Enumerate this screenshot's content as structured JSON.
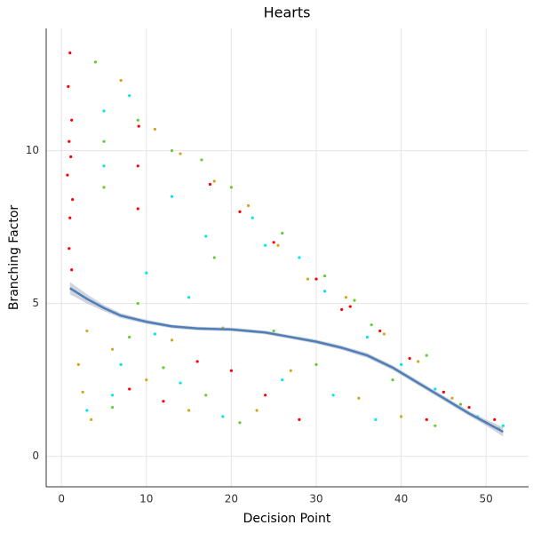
{
  "chart_data": {
    "type": "scatter",
    "title": "Hearts",
    "x_label": "Decision Point",
    "y_label": "Branching Factor",
    "xlim": [
      -1.8,
      55
    ],
    "ylim": [
      -1,
      14
    ],
    "xticks": [
      0,
      10,
      20,
      30,
      40,
      50
    ],
    "yticks": [
      0,
      5,
      10
    ],
    "grid": true,
    "series": [
      {
        "color": "#ff0000",
        "x": [
          1,
          0.8,
          1.2,
          0.9,
          1.1,
          0.7,
          1.3,
          1,
          0.9,
          1.2,
          9.1,
          9,
          9,
          17.5,
          21,
          25,
          30,
          34,
          37.5,
          41,
          45,
          48,
          51,
          12,
          20,
          28,
          16,
          8,
          24,
          33,
          43
        ],
        "y": [
          13.2,
          12.1,
          11.0,
          10.3,
          9.8,
          9.2,
          8.4,
          7.8,
          6.8,
          6.1,
          10.8,
          9.5,
          8.1,
          8.9,
          8,
          7,
          5.8,
          4.9,
          4.1,
          3.2,
          2.1,
          1.6,
          1.2,
          1.8,
          2.8,
          1.2,
          3.1,
          2.2,
          2.0,
          4.8,
          1.2
        ]
      },
      {
        "color": "#d4a520",
        "x": [
          3,
          2,
          2.5,
          3.5,
          7,
          11,
          14,
          18,
          22,
          25.5,
          29,
          33.5,
          38,
          42,
          46,
          50,
          6,
          10,
          15,
          19,
          27,
          35,
          40,
          13,
          23
        ],
        "y": [
          4.1,
          3.0,
          2.1,
          1.2,
          12.3,
          10.7,
          9.9,
          9,
          8.2,
          6.9,
          5.8,
          5.2,
          4.0,
          3.1,
          1.9,
          1.1,
          3.5,
          2.5,
          1.5,
          4.2,
          2.8,
          1.9,
          1.3,
          3.8,
          1.5
        ]
      },
      {
        "color": "#66cc33",
        "x": [
          4,
          5,
          5,
          9,
          13,
          16.5,
          20,
          26,
          31,
          34.5,
          36.5,
          43,
          47,
          51.5,
          8,
          12,
          17,
          21,
          30,
          39,
          44,
          6,
          25,
          18,
          9
        ],
        "y": [
          12.9,
          10.3,
          8.8,
          11,
          10,
          9.7,
          8.8,
          7.3,
          5.9,
          5.1,
          4.3,
          3.3,
          1.7,
          0.9,
          3.9,
          2.9,
          2.0,
          1.1,
          3.0,
          2.5,
          1.0,
          1.6,
          4.1,
          6.5,
          5
        ]
      },
      {
        "color": "#00e5ee",
        "x": [
          5,
          5,
          8,
          13,
          17,
          22.5,
          24,
          28,
          31,
          36,
          40,
          44,
          49,
          52,
          3,
          6,
          7,
          11,
          14,
          19,
          26,
          32,
          37,
          10,
          15
        ],
        "y": [
          11.3,
          9.5,
          11.8,
          8.5,
          7.2,
          7.8,
          6.9,
          6.5,
          5.4,
          3.9,
          3.0,
          2.2,
          1.3,
          1.0,
          1.5,
          2.0,
          3.0,
          4.0,
          2.4,
          1.3,
          2.5,
          2.0,
          1.2,
          6.0,
          5.2
        ]
      }
    ],
    "smooth": {
      "color": "#4f7fb8",
      "band_color": "#b0b8c4",
      "x": [
        1,
        3,
        5,
        7,
        10,
        13,
        16,
        20,
        24,
        27,
        30,
        33,
        36,
        39,
        42,
        45,
        48,
        50,
        52
      ],
      "y": [
        5.5,
        5.15,
        4.85,
        4.6,
        4.4,
        4.25,
        4.18,
        4.15,
        4.05,
        3.9,
        3.75,
        3.55,
        3.3,
        2.9,
        2.4,
        1.9,
        1.4,
        1.1,
        0.8
      ],
      "lower": [
        5.3,
        5.0,
        4.75,
        4.52,
        4.33,
        4.19,
        4.12,
        4.09,
        3.99,
        3.84,
        3.68,
        3.48,
        3.22,
        2.82,
        2.32,
        1.82,
        1.32,
        1.0,
        0.65
      ],
      "upper": [
        5.7,
        5.3,
        4.95,
        4.68,
        4.47,
        4.31,
        4.24,
        4.21,
        4.11,
        3.96,
        3.82,
        3.62,
        3.38,
        2.98,
        2.48,
        1.98,
        1.48,
        1.2,
        0.95
      ]
    }
  }
}
